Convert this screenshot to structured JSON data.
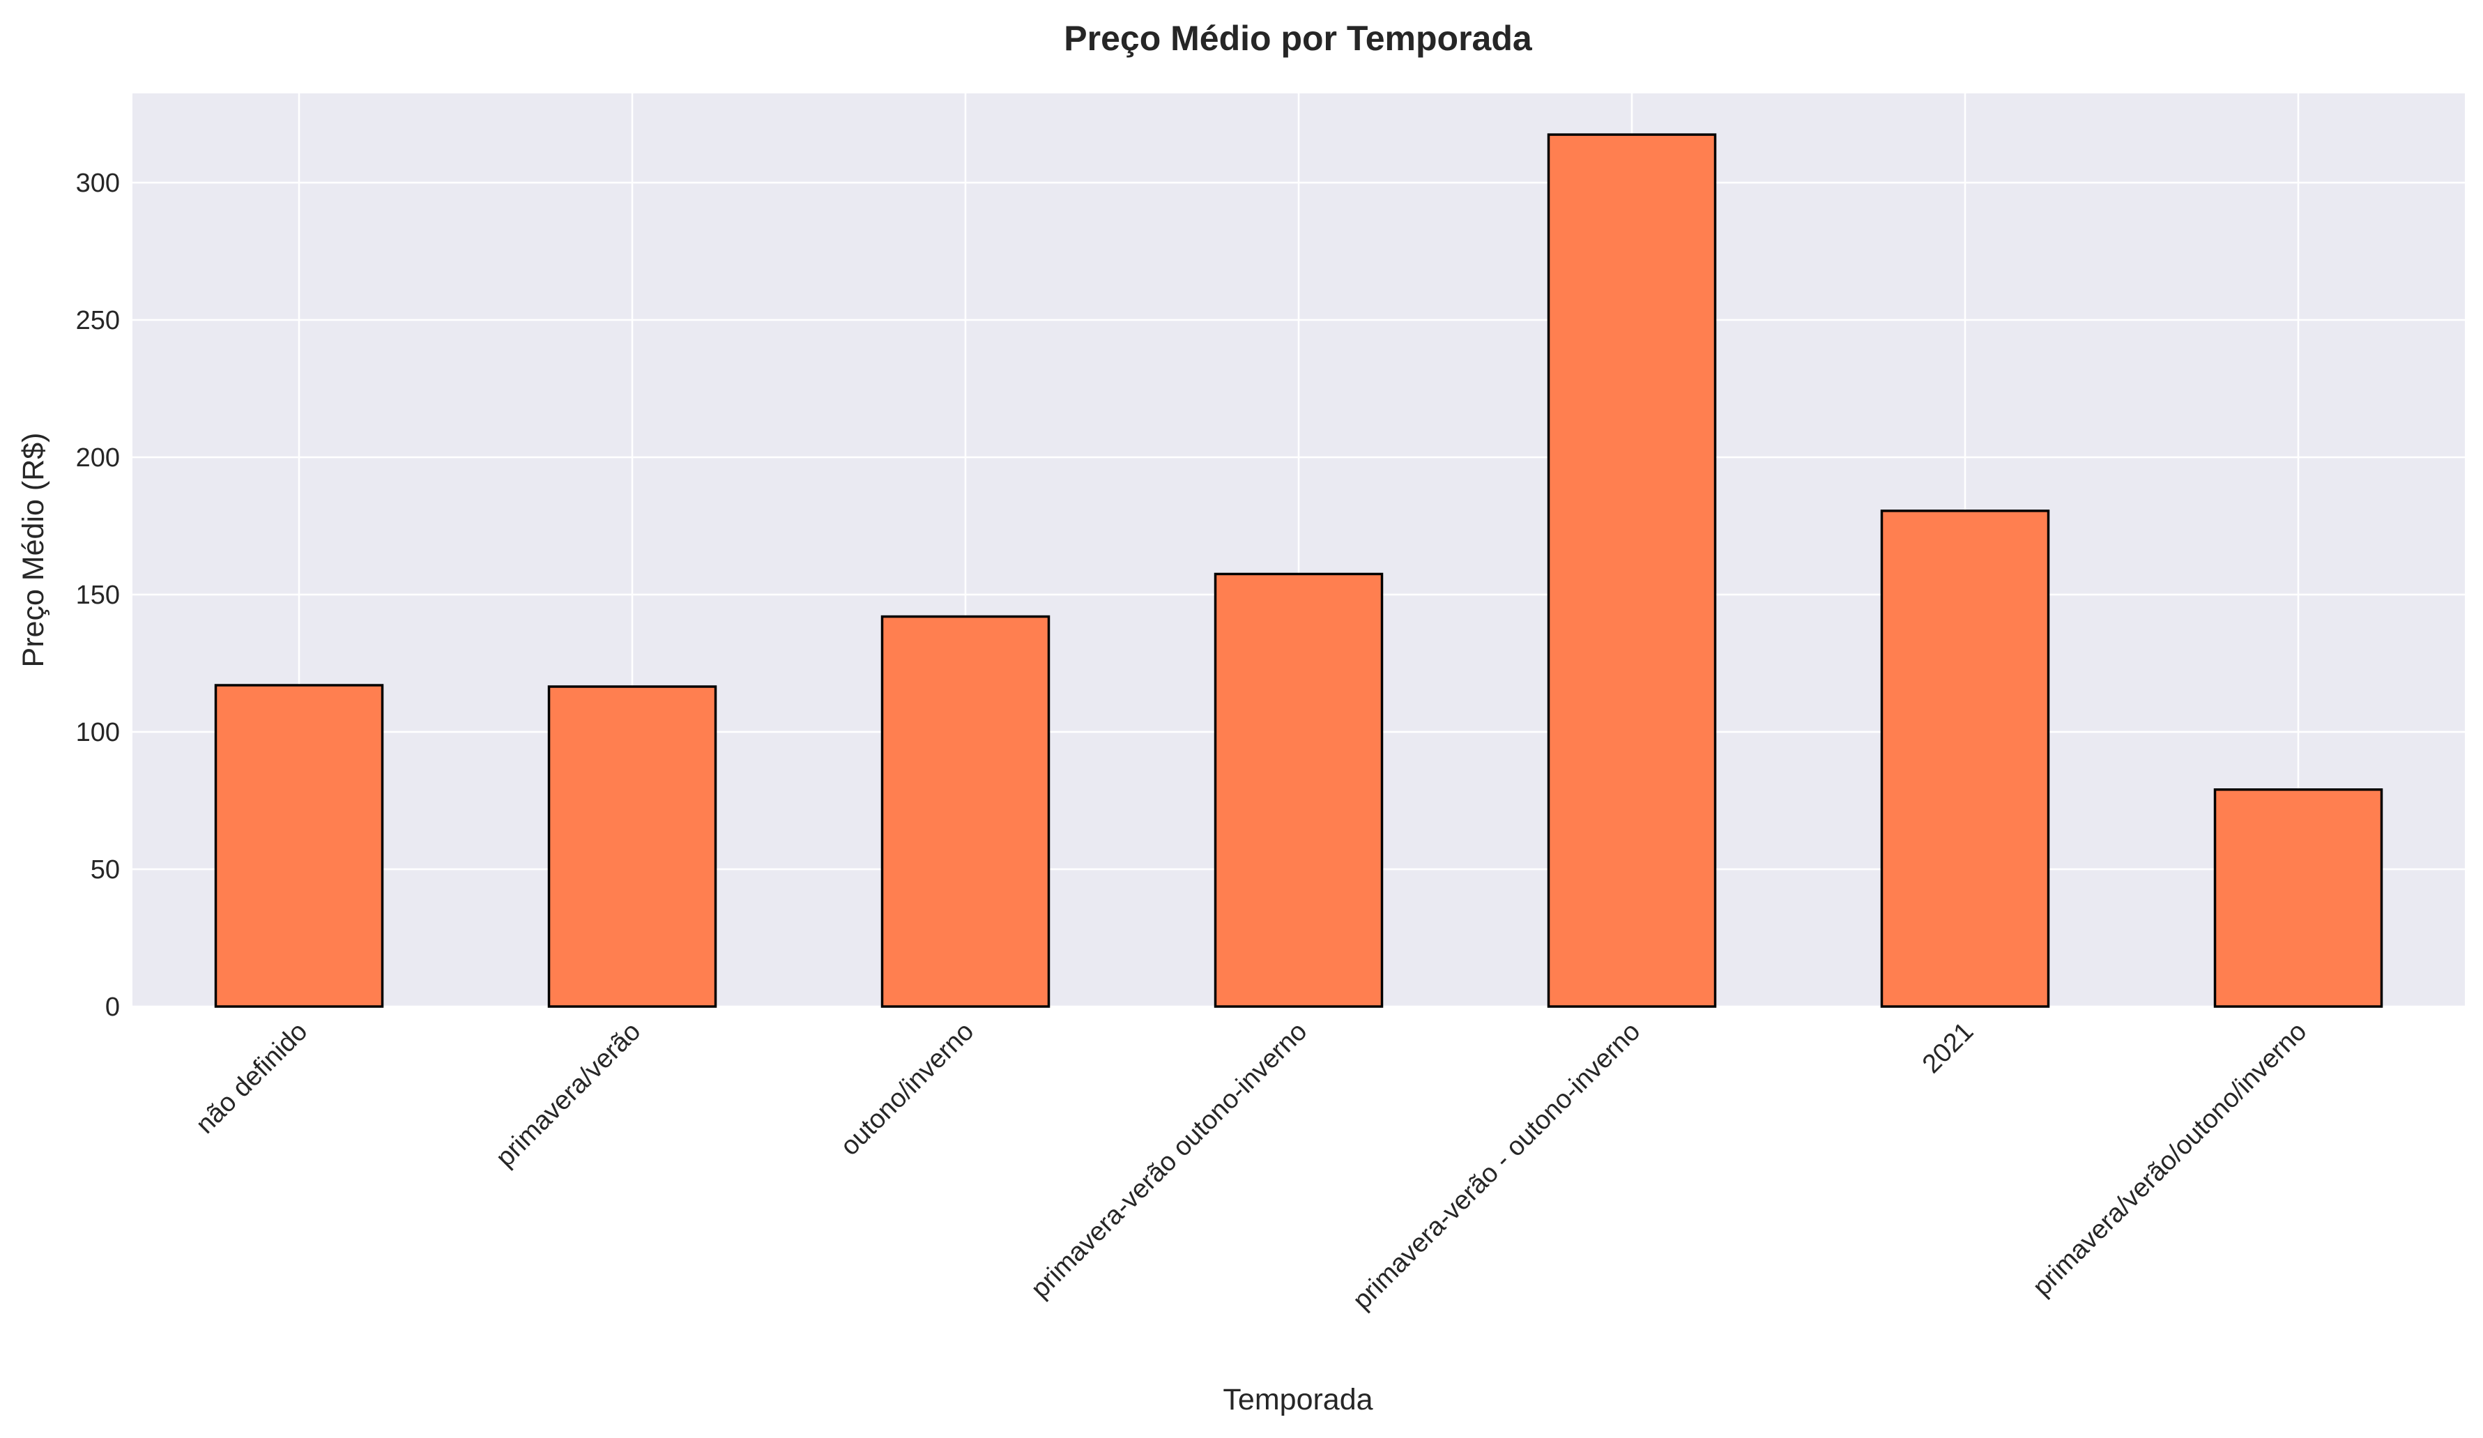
{
  "chart_data": {
    "type": "bar",
    "title": "Preço Médio por Temporada",
    "xlabel": "Temporada",
    "ylabel": "Preço Médio (R$)",
    "categories": [
      "não definido",
      "primavera/verão",
      "outono/inverno",
      "primavera-verão outono-inverno",
      "primavera-verão - outono-inverno",
      "2021",
      "primavera/verão/outono/inverno"
    ],
    "values": [
      117,
      116.5,
      142,
      157.5,
      317.5,
      180.5,
      79
    ],
    "ylim": [
      0,
      332.5
    ],
    "yticks": [
      0,
      50,
      100,
      150,
      200,
      250,
      300
    ],
    "grid": true,
    "colors": {
      "bar_fill": "#FF7F50",
      "bar_edge": "#000000",
      "plot_background": "#EAEAF2",
      "grid": "#FFFFFF"
    }
  }
}
